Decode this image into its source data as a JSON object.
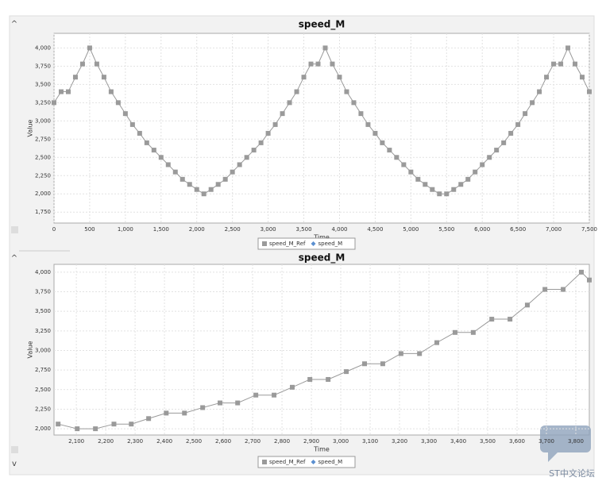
{
  "ui": {
    "collapse_top": "^",
    "collapse_mid": "^",
    "expand": "v",
    "watermark": "ST中文论坛"
  },
  "chart_data": [
    {
      "type": "line",
      "title": "speed_M",
      "x_label": "Time",
      "y_label": "Value",
      "grid": true,
      "xlim": [
        0,
        7500
      ],
      "ylim": [
        1600,
        4200
      ],
      "xticks": [
        0,
        500,
        {
          "value": 1000,
          "label": "1,000"
        },
        {
          "value": 1500,
          "label": "1,500"
        },
        {
          "value": 2000,
          "label": "2,000"
        },
        {
          "value": 2500,
          "label": "2,500"
        },
        {
          "value": 3000,
          "label": "3,000"
        },
        {
          "value": 3500,
          "label": "3,500"
        },
        {
          "value": 4000,
          "label": "4,000"
        },
        {
          "value": 4500,
          "label": "4,500"
        },
        {
          "value": 5000,
          "label": "5,000"
        },
        {
          "value": 5500,
          "label": "5,500"
        },
        {
          "value": 6000,
          "label": "6,000"
        },
        {
          "value": 6500,
          "label": "6,500"
        },
        {
          "value": 7000,
          "label": "7,000"
        },
        {
          "value": 7500,
          "label": "7,500"
        }
      ],
      "yticks": [
        {
          "value": 1750,
          "label": "1,750"
        },
        {
          "value": 2000,
          "label": "2,000"
        },
        {
          "value": 2250,
          "label": "2,250"
        },
        {
          "value": 2500,
          "label": "2,500"
        },
        {
          "value": 2750,
          "label": "2,750"
        },
        {
          "value": 3000,
          "label": "3,000"
        },
        {
          "value": 3250,
          "label": "3,250"
        },
        {
          "value": 3500,
          "label": "3,500"
        },
        {
          "value": 3750,
          "label": "3,750"
        },
        {
          "value": 4000,
          "label": "4,000"
        }
      ],
      "x": [
        0,
        100,
        200,
        300,
        400,
        500,
        600,
        700,
        800,
        900,
        1000,
        1100,
        1200,
        1300,
        1400,
        1500,
        1600,
        1700,
        1800,
        1900,
        2000,
        2100,
        2200,
        2300,
        2400,
        2500,
        2600,
        2700,
        2800,
        2900,
        3000,
        3100,
        3200,
        3300,
        3400,
        3500,
        3600,
        3700,
        3800,
        3900,
        4000,
        4100,
        4200,
        4300,
        4400,
        4500,
        4600,
        4700,
        4800,
        4900,
        5000,
        5100,
        5200,
        5300,
        5400,
        5500,
        5600,
        5700,
        5800,
        5900,
        6000,
        6100,
        6200,
        6300,
        6400,
        6500,
        6600,
        6700,
        6800,
        6900,
        7000,
        7100,
        7200,
        7300,
        7400,
        7500
      ],
      "series": [
        {
          "name": "speed_M",
          "color": "#5b8fd0",
          "values": [
            null,
            null,
            null,
            null,
            null,
            null,
            null,
            null,
            null,
            null,
            null,
            null,
            null,
            null,
            null,
            null,
            null,
            null,
            null,
            null,
            null,
            null,
            null,
            null,
            null,
            null,
            null,
            null,
            null,
            null,
            null,
            null,
            null,
            null,
            null,
            null,
            null,
            null,
            null,
            null,
            null,
            null,
            null,
            null,
            null,
            null,
            null,
            null,
            null,
            null,
            null,
            null,
            null,
            null,
            null,
            null,
            null,
            null,
            null,
            null,
            null,
            null,
            null,
            null,
            null,
            null,
            null,
            null,
            null,
            null,
            null,
            null,
            null,
            null,
            null,
            null
          ]
        },
        {
          "name": "speed_M_Ref",
          "color": "#9a9a9a",
          "values": [
            3250,
            3400,
            3400,
            3600,
            3780,
            4000,
            3780,
            3600,
            3400,
            3250,
            3100,
            2950,
            2830,
            2700,
            2600,
            2500,
            2400,
            2300,
            2200,
            2130,
            2060,
            2000,
            2060,
            2130,
            2200,
            2300,
            2400,
            2500,
            2600,
            2700,
            2830,
            2950,
            3100,
            3250,
            3400,
            3600,
            3780,
            3780,
            4000,
            3780,
            3600,
            3400,
            3250,
            3100,
            2950,
            2830,
            2700,
            2600,
            2500,
            2400,
            2300,
            2200,
            2130,
            2060,
            2000,
            2000,
            2060,
            2130,
            2200,
            2300,
            2400,
            2500,
            2600,
            2700,
            2830,
            2950,
            3100,
            3250,
            3400,
            3600,
            3780,
            3780,
            4000,
            3780,
            3600,
            3400
          ]
        }
      ]
    },
    {
      "type": "line",
      "title": "speed_M",
      "x_label": "Time",
      "y_label": "Value",
      "grid": true,
      "xlim": [
        2024,
        3846
      ],
      "ylim": [
        1920,
        4100
      ],
      "xticks": [
        {
          "value": 2100,
          "label": "2,100"
        },
        {
          "value": 2200,
          "label": "2,200"
        },
        {
          "value": 2300,
          "label": "2,300"
        },
        {
          "value": 2400,
          "label": "2,400"
        },
        {
          "value": 2500,
          "label": "2,500"
        },
        {
          "value": 2600,
          "label": "2,600"
        },
        {
          "value": 2700,
          "label": "2,700"
        },
        {
          "value": 2800,
          "label": "2,800"
        },
        {
          "value": 2900,
          "label": "2,900"
        },
        {
          "value": 3000,
          "label": "3,000"
        },
        {
          "value": 3100,
          "label": "3,100"
        },
        {
          "value": 3200,
          "label": "3,200"
        },
        {
          "value": 3300,
          "label": "3,300"
        },
        {
          "value": 3400,
          "label": "3,400"
        },
        {
          "value": 3500,
          "label": "3,500"
        },
        {
          "value": 3600,
          "label": "3,600"
        },
        {
          "value": 3700,
          "label": "3,700"
        },
        {
          "value": 3800,
          "label": "3,800"
        }
      ],
      "yticks": [
        {
          "value": 2000,
          "label": "2,000"
        },
        {
          "value": 2250,
          "label": "2,250"
        },
        {
          "value": 2500,
          "label": "2,500"
        },
        {
          "value": 2750,
          "label": "2,750"
        },
        {
          "value": 3000,
          "label": "3,000"
        },
        {
          "value": 3250,
          "label": "3,250"
        },
        {
          "value": 3500,
          "label": "3,500"
        },
        {
          "value": 3750,
          "label": "3,750"
        },
        {
          "value": 4000,
          "label": "4,000"
        }
      ],
      "x": [
        2038,
        2103,
        2165,
        2228,
        2287,
        2346,
        2406,
        2468,
        2530,
        2589,
        2649,
        2711,
        2773,
        2835,
        2895,
        2957,
        3019,
        3081,
        3143,
        3205,
        3268,
        3327,
        3389,
        3451,
        3514,
        3576,
        3635,
        3695,
        3757,
        3819,
        3846
      ],
      "series": [
        {
          "name": "speed_M",
          "color": "#5b8fd0",
          "values": [
            null,
            null,
            null,
            null,
            null,
            null,
            null,
            null,
            null,
            null,
            null,
            null,
            null,
            null,
            null,
            null,
            null,
            null,
            null,
            null,
            null,
            null,
            null,
            null,
            null,
            null,
            null,
            null,
            null,
            null,
            null
          ]
        },
        {
          "name": "speed_M_Ref",
          "color": "#9a9a9a",
          "values": [
            2060,
            2000,
            2000,
            2060,
            2060,
            2130,
            2200,
            2200,
            2270,
            2330,
            2330,
            2430,
            2430,
            2530,
            2630,
            2630,
            2730,
            2830,
            2830,
            2960,
            2960,
            3100,
            3230,
            3230,
            3400,
            3400,
            3580,
            3780,
            3780,
            4000,
            3900
          ]
        }
      ]
    }
  ]
}
